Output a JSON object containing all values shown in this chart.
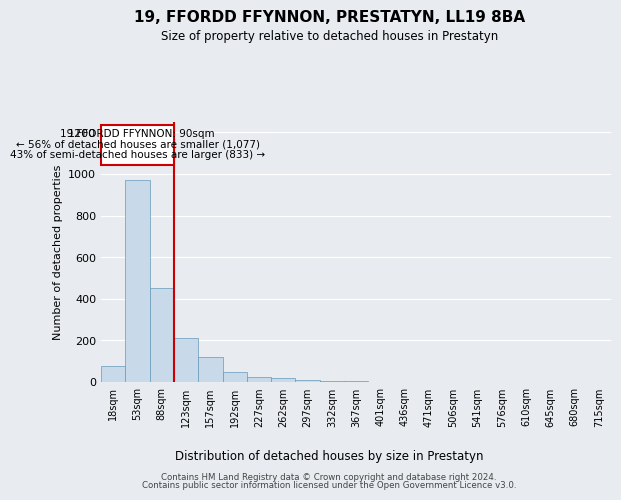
{
  "title": "19, FFORDD FFYNNON, PRESTATYN, LL19 8BA",
  "subtitle": "Size of property relative to detached houses in Prestatyn",
  "xlabel": "Distribution of detached houses by size in Prestatyn",
  "ylabel": "Number of detached properties",
  "footnote1": "Contains HM Land Registry data © Crown copyright and database right 2024.",
  "footnote2": "Contains public sector information licensed under the Open Government Licence v3.0.",
  "annotation_line1": "19 FFORDD FFYNNON: 90sqm",
  "annotation_line2": "← 56% of detached houses are smaller (1,077)",
  "annotation_line3": "43% of semi-detached houses are larger (833) →",
  "bar_labels": [
    "18sqm",
    "53sqm",
    "88sqm",
    "123sqm",
    "157sqm",
    "192sqm",
    "227sqm",
    "262sqm",
    "297sqm",
    "332sqm",
    "367sqm",
    "401sqm",
    "436sqm",
    "471sqm",
    "506sqm",
    "541sqm",
    "576sqm",
    "610sqm",
    "645sqm",
    "680sqm",
    "715sqm"
  ],
  "bar_values": [
    75,
    970,
    450,
    210,
    120,
    50,
    22,
    18,
    10,
    5,
    3,
    0,
    0,
    0,
    0,
    0,
    0,
    0,
    0,
    0,
    0
  ],
  "bar_color": "#c8d9ea",
  "bar_edge_color": "#6699bb",
  "property_line_color": "#cc0000",
  "annotation_box_edge_color": "#cc0000",
  "ylim": [
    0,
    1250
  ],
  "yticks": [
    0,
    200,
    400,
    600,
    800,
    1000,
    1200
  ],
  "bg_color": "#e8ecf0",
  "plot_bg_color": "#e8ecf0",
  "grid_color": "#ffffff"
}
